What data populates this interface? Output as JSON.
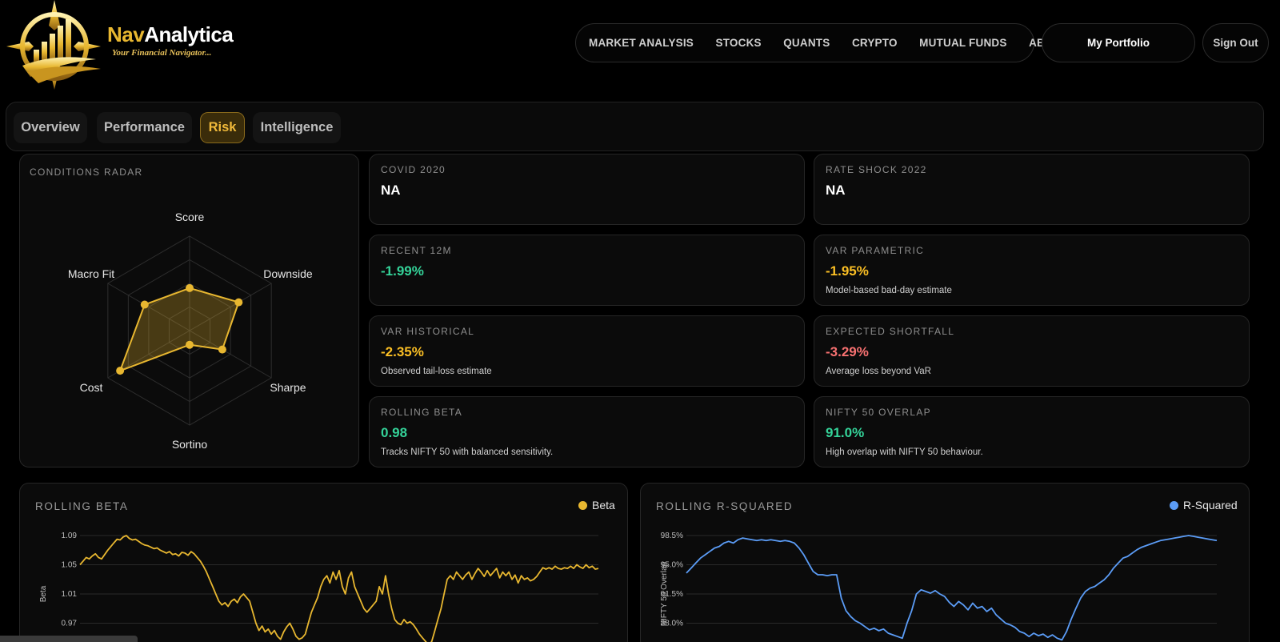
{
  "brand": {
    "name_prefix": "Nav",
    "name_suffix": "Analytica",
    "tagline": "Your Financial Navigator..."
  },
  "nav": {
    "items": [
      "MARKET ANALYSIS",
      "STOCKS",
      "QUANTS",
      "CRYPTO",
      "MUTUAL FUNDS",
      "ABOUT"
    ],
    "portfolio_label": "My Portfolio",
    "signout_label": "Sign Out"
  },
  "tabs": [
    {
      "label": "Overview",
      "active": false
    },
    {
      "label": "Performance",
      "active": false
    },
    {
      "label": "Risk",
      "active": true
    },
    {
      "label": "Intelligence",
      "active": false
    }
  ],
  "radar": {
    "title": "CONDITIONS RADAR",
    "axes": [
      "Score",
      "Downside",
      "Sharpe",
      "Sortino",
      "Cost",
      "Macro Fit"
    ],
    "values": [
      0.45,
      0.6,
      0.4,
      0.15,
      0.85,
      0.55
    ],
    "color": "#e8b730"
  },
  "metrics": [
    {
      "label": "COVID 2020",
      "value": "NA",
      "desc": "",
      "color": "#ffffff"
    },
    {
      "label": "RATE SHOCK 2022",
      "value": "NA",
      "desc": "",
      "color": "#ffffff"
    },
    {
      "label": "RECENT 12M",
      "value": "-1.99%",
      "desc": "",
      "color": "#34d399"
    },
    {
      "label": "VAR PARAMETRIC",
      "value": "-1.95%",
      "desc": "Model-based bad-day estimate",
      "color": "#fbbf24"
    },
    {
      "label": "VAR HISTORICAL",
      "value": "-2.35%",
      "desc": "Observed tail-loss estimate",
      "color": "#fbbf24"
    },
    {
      "label": "EXPECTED SHORTFALL",
      "value": "-3.29%",
      "desc": "Average loss beyond VaR",
      "color": "#f87171"
    },
    {
      "label": "ROLLING BETA",
      "value": "0.98",
      "desc": "Tracks NIFTY 50 with balanced sensitivity.",
      "color": "#34d399"
    },
    {
      "label": "NIFTY 50 OVERLAP",
      "value": "91.0%",
      "desc": "High overlap with NIFTY 50 behaviour.",
      "color": "#34d399"
    }
  ],
  "chart_data": [
    {
      "type": "line",
      "title": "ROLLING BETA",
      "ylabel": "Beta",
      "y_ticks": [
        "1.09",
        "1.05",
        "1.01",
        "0.97"
      ],
      "y_tick_values": [
        1.09,
        1.05,
        1.01,
        0.97
      ],
      "ylim": [
        0.95,
        1.09
      ],
      "series": [
        {
          "name": "Beta",
          "color": "#e8b730",
          "values": [
            1.05,
            1.055,
            1.06,
            1.058,
            1.062,
            1.065,
            1.06,
            1.058,
            1.064,
            1.07,
            1.075,
            1.08,
            1.085,
            1.084,
            1.088,
            1.09,
            1.086,
            1.084,
            1.085,
            1.082,
            1.079,
            1.077,
            1.076,
            1.074,
            1.072,
            1.073,
            1.07,
            1.068,
            1.066,
            1.068,
            1.064,
            1.065,
            1.062,
            1.067,
            1.066,
            1.063,
            1.068,
            1.065,
            1.06,
            1.055,
            1.048,
            1.04,
            1.03,
            1.02,
            1.01,
            1.0,
            0.995,
            0.998,
            0.993,
            1.0,
            1.003,
            0.998,
            1.006,
            1.01,
            1.005,
            1.0,
            0.985,
            0.97,
            0.96,
            0.966,
            0.958,
            0.962,
            0.955,
            0.96,
            0.952,
            0.948,
            0.958,
            0.965,
            0.97,
            0.962,
            0.952,
            0.948,
            0.95,
            0.955,
            0.97,
            0.985,
            0.995,
            1.005,
            1.02,
            1.03,
            1.035,
            1.025,
            1.04,
            1.03,
            1.042,
            1.02,
            1.01,
            1.032,
            1.04,
            1.02,
            1.01,
            1.0,
            0.99,
            0.985,
            0.99,
            0.995,
            1.0,
            1.02,
            1.01,
            1.035,
            1.01,
            0.99,
            0.975,
            0.97,
            0.968,
            0.975,
            0.97,
            0.972,
            0.968,
            0.962,
            0.955,
            0.95,
            0.945,
            0.94,
            0.945,
            0.96,
            0.975,
            0.99,
            1.01,
            1.03,
            1.035,
            1.03,
            1.04,
            1.035,
            1.03,
            1.036,
            1.04,
            1.03,
            1.038,
            1.045,
            1.04,
            1.034,
            1.042,
            1.035,
            1.04,
            1.045,
            1.032,
            1.04,
            1.035,
            1.04,
            1.03,
            1.036,
            1.025,
            1.035,
            1.03,
            1.032,
            1.028,
            1.03,
            1.034,
            1.04,
            1.046,
            1.044,
            1.046,
            1.044,
            1.048,
            1.045,
            1.044,
            1.046,
            1.045,
            1.048,
            1.045,
            1.05,
            1.047,
            1.045,
            1.05,
            1.046,
            1.048,
            1.044,
            1.045
          ]
        }
      ]
    },
    {
      "type": "line",
      "title": "ROLLING R-SQUARED",
      "ylabel": "NIFTY 50 Overlap",
      "y_ticks": [
        "98.5%",
        "95.0%",
        "91.5%",
        "88.0%"
      ],
      "y_tick_values": [
        98.5,
        95.0,
        91.5,
        88.0
      ],
      "ylim": [
        86.0,
        98.5
      ],
      "series": [
        {
          "name": "R-Squared",
          "color": "#5b9cf6",
          "values": [
            94.0,
            94.6,
            95.2,
            95.8,
            96.2,
            96.6,
            97.0,
            97.2,
            97.6,
            97.8,
            97.6,
            98.0,
            98.2,
            98.1,
            98.0,
            97.9,
            98.0,
            97.9,
            98.0,
            97.9,
            97.8,
            97.9,
            97.8,
            97.6,
            97.0,
            96.2,
            95.2,
            94.2,
            93.8,
            93.8,
            93.7,
            93.8,
            93.8,
            91.0,
            89.5,
            88.8,
            88.3,
            88.0,
            87.6,
            87.2,
            87.4,
            87.1,
            87.3,
            86.8,
            86.6,
            86.4,
            86.2,
            88.0,
            89.5,
            91.5,
            92.0,
            91.8,
            91.6,
            91.9,
            91.5,
            91.2,
            90.5,
            90.0,
            90.6,
            90.2,
            89.6,
            90.4,
            89.8,
            90.0,
            89.4,
            89.8,
            89.0,
            88.5,
            88.0,
            87.8,
            87.5,
            87.0,
            86.8,
            86.4,
            86.8,
            86.5,
            86.7,
            86.3,
            86.6,
            86.2,
            86.0,
            87.0,
            88.5,
            89.8,
            91.0,
            91.8,
            92.2,
            92.4,
            92.8,
            93.2,
            93.8,
            94.6,
            95.2,
            95.8,
            96.0,
            96.4,
            96.8,
            97.1,
            97.3,
            97.5,
            97.7,
            97.9,
            98.0,
            98.1,
            98.2,
            98.3,
            98.4,
            98.5,
            98.4,
            98.3,
            98.2,
            98.1,
            98.0,
            97.9
          ]
        }
      ]
    }
  ]
}
